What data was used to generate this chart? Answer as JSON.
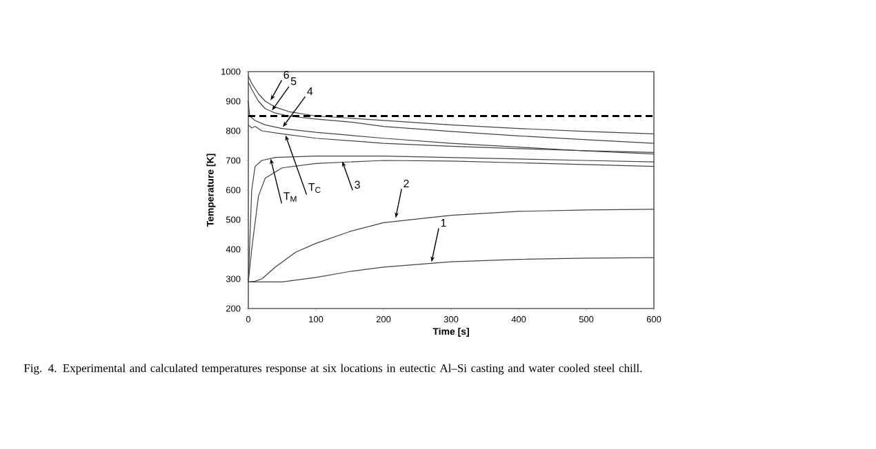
{
  "chart_data": {
    "type": "line",
    "xlabel": "Time [s]",
    "ylabel": "Temperature [K]",
    "xlim": [
      0,
      600
    ],
    "ylim": [
      200,
      1000
    ],
    "xticks": [
      0,
      100,
      200,
      300,
      400,
      500,
      600
    ],
    "yticks": [
      200,
      300,
      400,
      500,
      600,
      700,
      800,
      900,
      1000
    ],
    "grid": false,
    "marker": "none",
    "line_style": "solid",
    "series": [
      {
        "color": "#404040",
        "x": [
          0,
          5,
          15,
          25,
          40,
          60,
          100,
          150,
          200,
          300,
          400,
          500,
          600
        ],
        "values": [
          985,
          960,
          925,
          900,
          880,
          865,
          850,
          843,
          835,
          820,
          808,
          798,
          790
        ]
      },
      {
        "color": "#404040",
        "x": [
          0,
          5,
          15,
          25,
          40,
          60,
          100,
          150,
          200,
          300,
          400,
          500,
          600
        ],
        "values": [
          965,
          940,
          900,
          875,
          860,
          850,
          840,
          830,
          815,
          798,
          783,
          770,
          758
        ]
      },
      {
        "color": "#404040",
        "x": [
          0,
          2,
          10,
          25,
          50,
          100,
          200,
          300,
          400,
          500,
          600
        ],
        "values": [
          900,
          850,
          835,
          820,
          808,
          795,
          775,
          758,
          745,
          732,
          722
        ]
      },
      {
        "color": "#404040",
        "x": [
          0,
          5,
          10,
          20,
          50,
          100,
          200,
          300,
          400,
          500,
          600
        ],
        "values": [
          820,
          810,
          815,
          800,
          790,
          775,
          758,
          748,
          740,
          733,
          727
        ]
      },
      {
        "color": "#404040",
        "x": [
          0,
          5,
          10,
          20,
          40,
          100,
          200,
          300,
          400,
          500,
          600
        ],
        "values": [
          290,
          600,
          680,
          700,
          710,
          715,
          715,
          710,
          705,
          700,
          695
        ]
      },
      {
        "color": "#404040",
        "x": [
          0,
          5,
          15,
          25,
          50,
          100,
          200,
          300,
          400,
          500,
          600
        ],
        "values": [
          290,
          400,
          580,
          640,
          675,
          690,
          700,
          698,
          692,
          686,
          680
        ]
      },
      {
        "color": "#404040",
        "x": [
          0,
          10,
          20,
          40,
          70,
          100,
          150,
          200,
          300,
          400,
          500,
          600
        ],
        "values": [
          290,
          292,
          300,
          340,
          390,
          420,
          460,
          490,
          515,
          528,
          533,
          535
        ]
      },
      {
        "color": "#404040",
        "x": [
          0,
          50,
          100,
          150,
          200,
          300,
          400,
          500,
          600
        ],
        "values": [
          290,
          290,
          305,
          325,
          340,
          358,
          366,
          370,
          372
        ]
      }
    ],
    "ref_lines": [
      {
        "axis": "y",
        "value": 850,
        "color": "#000000",
        "line_style": "dashed"
      }
    ],
    "annotations": [
      {
        "text": "6",
        "x": 33,
        "y": 903
      },
      {
        "text": "5",
        "x": 35,
        "y": 869
      },
      {
        "text": "4",
        "x": 51,
        "y": 813
      },
      {
        "text": "T$_{C}$",
        "x": 55,
        "y": 785
      },
      {
        "text": "3",
        "x": 139,
        "y": 697
      },
      {
        "text": "T$_{M}$",
        "x": 33,
        "y": 706
      },
      {
        "text": "2",
        "x": 218,
        "y": 506
      },
      {
        "text": "1",
        "x": 271,
        "y": 357
      },
      "Fig. 4. Experimental and calculated temperatures response at six locations in eutectic Al–Si casting and water cooled steel chill."
    ]
  }
}
